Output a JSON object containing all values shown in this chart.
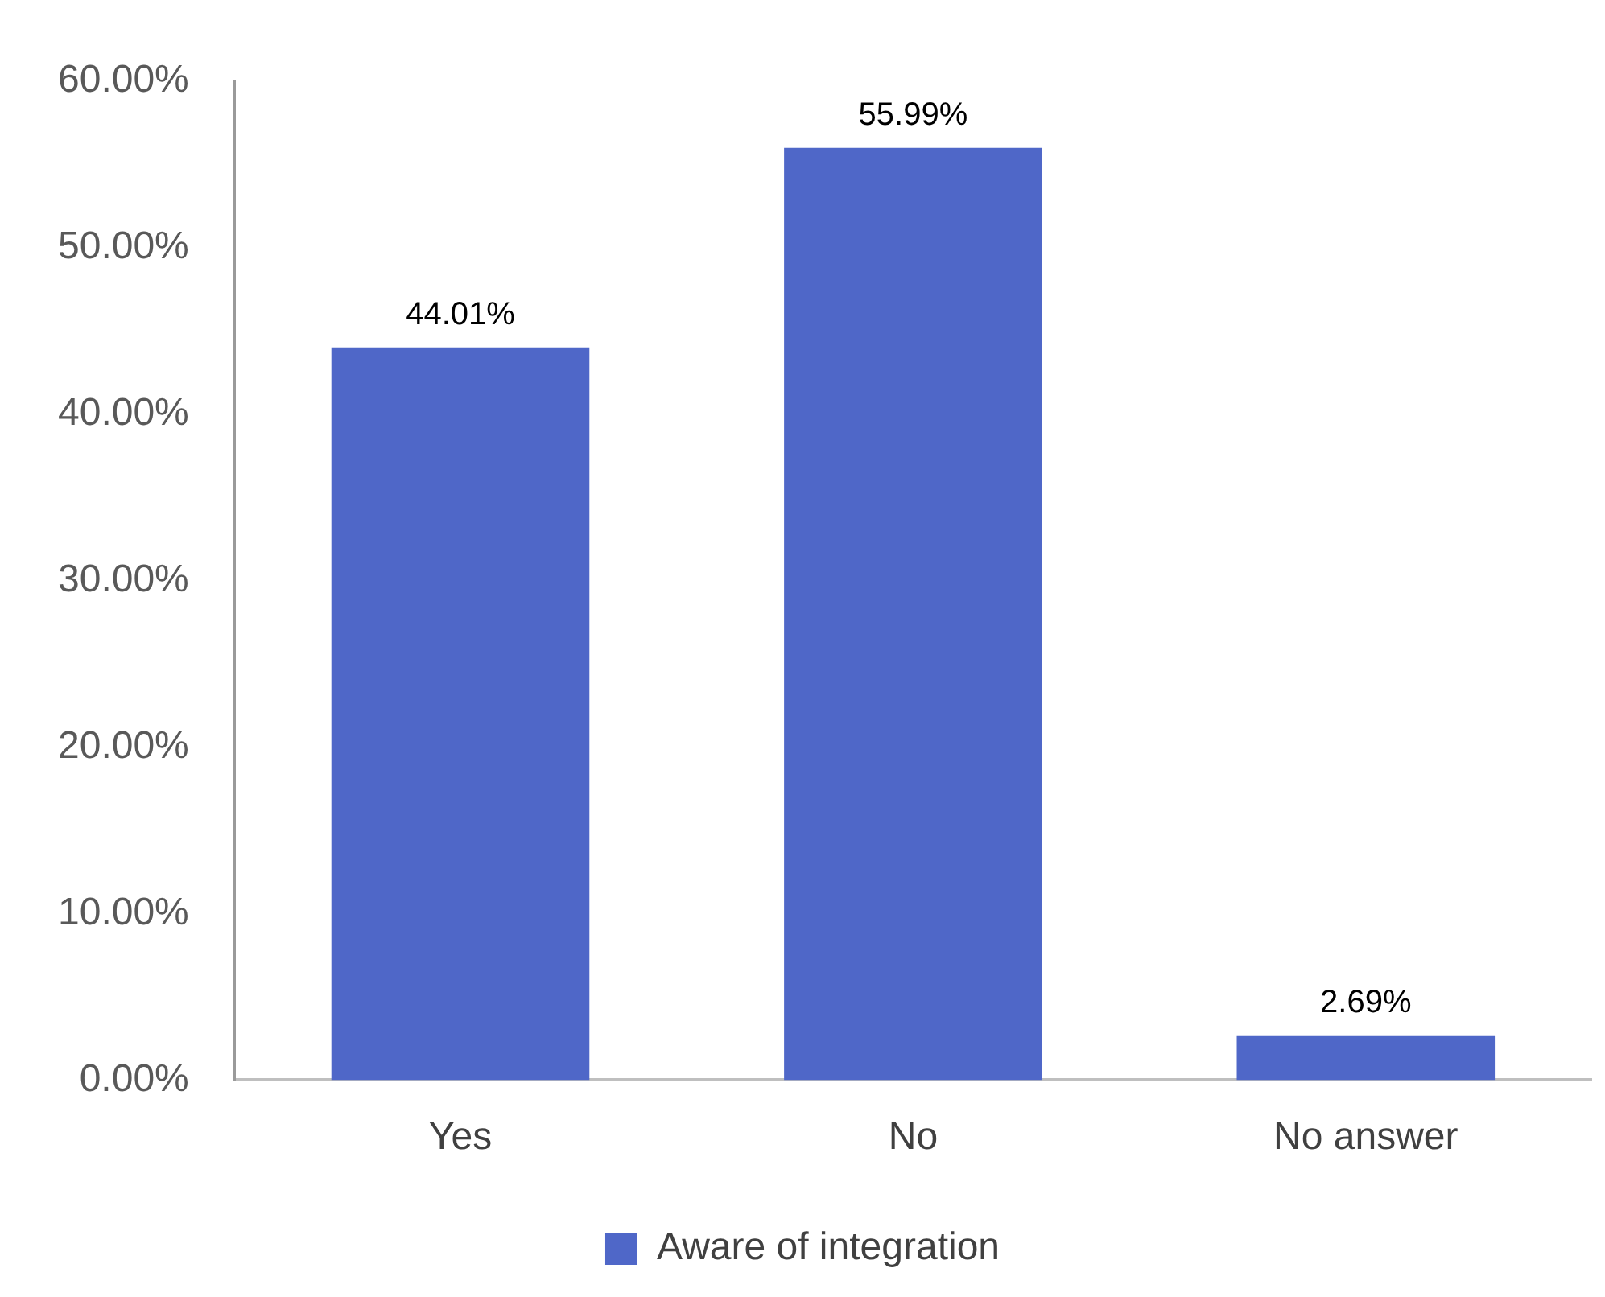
{
  "chart_data": {
    "type": "bar",
    "categories": [
      "Yes",
      "No",
      "No answer"
    ],
    "series": [
      {
        "name": "Aware of integration",
        "color": "#4f67c8",
        "values": [
          44.01,
          55.99,
          2.69
        ],
        "value_labels": [
          "44.01%",
          "55.99%",
          "2.69%"
        ]
      }
    ],
    "ylim": [
      0,
      60
    ],
    "yticks": [
      {
        "value": 0,
        "label": "0.00%"
      },
      {
        "value": 10,
        "label": "10.00%"
      },
      {
        "value": 20,
        "label": "20.00%"
      },
      {
        "value": 30,
        "label": "30.00%"
      },
      {
        "value": 40,
        "label": "40.00%"
      },
      {
        "value": 50,
        "label": "50.00%"
      },
      {
        "value": 60,
        "label": "60.00%"
      }
    ],
    "grid": false,
    "legend": "bottom"
  }
}
